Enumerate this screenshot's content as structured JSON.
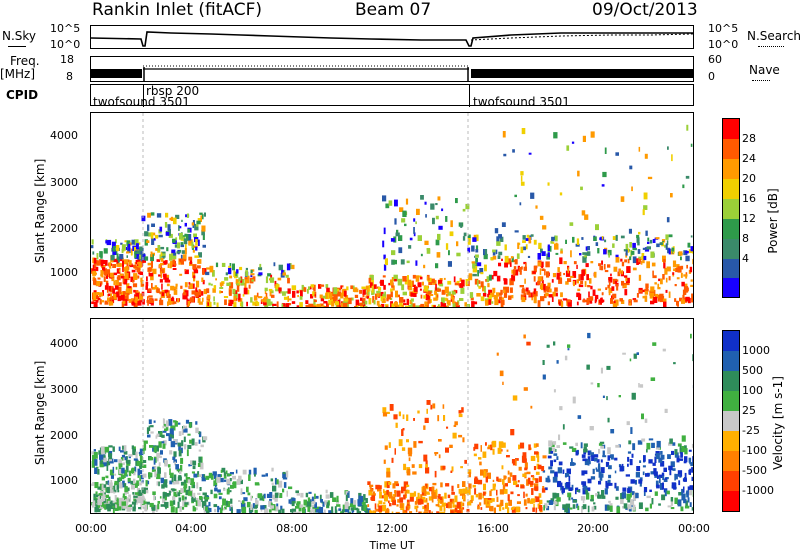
{
  "header": {
    "title": "Rankin Inlet (fitACF)",
    "beam": "Beam 07",
    "date": "09/Oct/2013"
  },
  "aux": {
    "nsky_label": "N.Sky",
    "nsky_ticks": [
      "10^5",
      "10^0"
    ],
    "nsearch_label": "N.Search",
    "nsearch_ticks": [
      "10^5",
      "10^0"
    ],
    "freq_label": "Freq.",
    "freq_unit": "[MHz]",
    "freq_ticks": [
      "18",
      "8"
    ],
    "nave_label": "Nave",
    "nave_ticks": [
      "60",
      "0"
    ],
    "cpid_label": "CPID",
    "cpid_segments": [
      {
        "label": "twofsound 3501",
        "start_h": 0,
        "end_h": 2
      },
      {
        "label": "rbsp 200",
        "start_h": 2,
        "end_h": 15
      },
      {
        "label": "twofsound 3501",
        "start_h": 15,
        "end_h": 24
      }
    ]
  },
  "chart_data": [
    {
      "type": "heatmap",
      "name": "power-panel",
      "ylabel": "Slant Range [km]",
      "yticks": [
        "4000",
        "3000",
        "2000",
        "1000"
      ],
      "ylim": [
        180,
        4500
      ],
      "xlim": [
        0,
        24
      ],
      "colorbar": {
        "label": "Power [dB]",
        "ticks": [
          "28",
          "24",
          "20",
          "16",
          "12",
          "8",
          "4"
        ],
        "colors": [
          "#ff0000",
          "#ff5a00",
          "#ff9a00",
          "#f0d000",
          "#9bd038",
          "#2e9a4a",
          "#3a8a6a",
          "#2858a8",
          "#1800ff"
        ]
      }
    },
    {
      "type": "heatmap",
      "name": "velocity-panel",
      "ylabel": "Slant Range [km]",
      "yticks": [
        "4000",
        "3000",
        "2000",
        "1000"
      ],
      "ylim": [
        180,
        4500
      ],
      "xlim": [
        0,
        24
      ],
      "xlabel": "Time UT",
      "xticks": [
        "00:00",
        "04:00",
        "08:00",
        "12:00",
        "16:00",
        "20:00",
        "00:00"
      ],
      "colorbar": {
        "label": "Velocity [m s-1]",
        "ticks": [
          "1000",
          "500",
          "100",
          "25",
          "-25",
          "-100",
          "-500",
          "-1000"
        ],
        "colors": [
          "#1030c8",
          "#2060b0",
          "#2e8c5a",
          "#40b040",
          "#c8c8c8",
          "#ffb000",
          "#ff8000",
          "#ff4000",
          "#ff0000"
        ]
      }
    }
  ]
}
